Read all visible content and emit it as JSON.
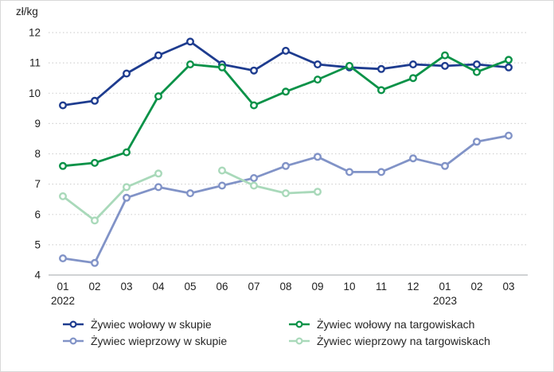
{
  "figure": {
    "unit_label": "zł/kg"
  },
  "chart_data": {
    "type": "line",
    "title": "",
    "ylabel": "zł/kg",
    "grid": "horizontal-dotted",
    "legend_position": "bottom",
    "legend_columns": 2,
    "x_axis": {
      "categories": [
        "01",
        "02",
        "03",
        "04",
        "05",
        "06",
        "07",
        "08",
        "09",
        "10",
        "11",
        "12",
        "01",
        "02",
        "03"
      ],
      "year_labels": [
        {
          "index": 0,
          "label": "2022"
        },
        {
          "index": 12,
          "label": "2023"
        }
      ]
    },
    "y_axis": {
      "min": 4,
      "max": 12,
      "tick_step": 1,
      "tick_labels": [
        "4",
        "5",
        "6",
        "7",
        "8",
        "9",
        "10",
        "11",
        "12"
      ]
    },
    "series": [
      {
        "name": "Żywiec wołowy w skupie",
        "color": "#1e3c8f",
        "values": [
          9.6,
          9.75,
          10.65,
          11.25,
          11.7,
          10.95,
          10.75,
          11.4,
          10.95,
          10.85,
          10.8,
          10.95,
          10.9,
          10.95,
          10.85
        ]
      },
      {
        "name": "Żywiec wołowy na targowiskach",
        "color": "#0a9248",
        "values": [
          7.6,
          7.7,
          8.05,
          9.9,
          10.95,
          10.85,
          9.6,
          10.05,
          10.45,
          10.9,
          10.1,
          10.5,
          11.25,
          10.7,
          11.1
        ]
      },
      {
        "name": "Żywiec wieprzowy w skupie",
        "color": "#8193c7",
        "values": [
          4.55,
          4.4,
          6.55,
          6.9,
          6.7,
          6.95,
          7.2,
          7.6,
          7.9,
          7.4,
          7.4,
          7.85,
          7.6,
          8.4,
          8.6
        ]
      },
      {
        "name": "Żywiec wieprzowy na targowiskach",
        "color": "#a9d9ba",
        "values": [
          6.6,
          5.8,
          6.9,
          7.35,
          null,
          7.45,
          6.95,
          6.7,
          6.75,
          null,
          null,
          null,
          null,
          null,
          null
        ]
      }
    ]
  }
}
